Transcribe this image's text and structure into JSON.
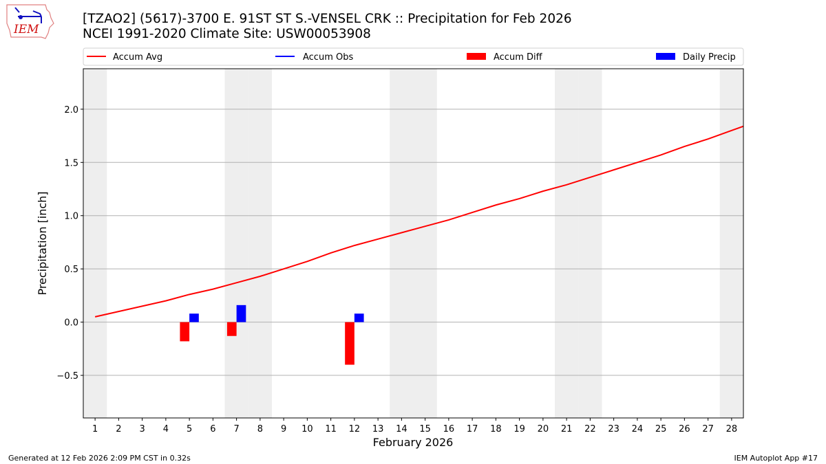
{
  "title_line1": "[TZAO2] (5617)-3700 E. 91ST ST S.-VENSEL CRK :: Precipitation for Feb 2026",
  "title_line2": "NCEI 1991-2020 Climate Site: USW00053908",
  "logo_text": "IEM",
  "footer_left": "Generated at 12 Feb 2026 2:09 PM CST in 0.32s",
  "footer_right": "IEM Autoplot App #17",
  "chart_data": {
    "type": "bar",
    "xlabel": "February 2026",
    "ylabel": "Precipitation [inch]",
    "xlim": [
      0.5,
      28.5
    ],
    "ylim": [
      -0.9,
      2.38
    ],
    "yticks": [
      -0.5,
      0.0,
      0.5,
      1.0,
      1.5,
      2.0
    ],
    "ytick_labels": [
      "−0.5",
      "0.0",
      "0.5",
      "1.0",
      "1.5",
      "2.0"
    ],
    "xticks": [
      1,
      2,
      3,
      4,
      5,
      6,
      7,
      8,
      9,
      10,
      11,
      12,
      13,
      14,
      15,
      16,
      17,
      18,
      19,
      20,
      21,
      22,
      23,
      24,
      25,
      26,
      27,
      28
    ],
    "grid": "horizontal",
    "legend_placement": "top",
    "weekend_shading_days": [
      1,
      7,
      8,
      14,
      15,
      21,
      22,
      28
    ],
    "legend": [
      {
        "name": "Accum Avg",
        "kind": "line",
        "color": "#ff0000"
      },
      {
        "name": "Accum Obs",
        "kind": "line",
        "color": "#0000ff"
      },
      {
        "name": "Accum Diff",
        "kind": "bar",
        "color": "#ff0000"
      },
      {
        "name": "Daily Precip",
        "kind": "bar",
        "color": "#0000ff"
      }
    ],
    "accum_avg": {
      "x": [
        1,
        2,
        3,
        4,
        5,
        6,
        7,
        8,
        9,
        10,
        11,
        12,
        13,
        14,
        15,
        16,
        17,
        18,
        19,
        20,
        21,
        22,
        23,
        24,
        25,
        26,
        27,
        28,
        29
      ],
      "y": [
        0.05,
        0.1,
        0.15,
        0.2,
        0.26,
        0.31,
        0.37,
        0.43,
        0.5,
        0.57,
        0.65,
        0.72,
        0.78,
        0.84,
        0.9,
        0.96,
        1.03,
        1.1,
        1.16,
        1.23,
        1.29,
        1.36,
        1.43,
        1.5,
        1.57,
        1.65,
        1.72,
        1.8,
        1.88
      ]
    },
    "accum_diff": {
      "x": [
        5,
        7,
        12
      ],
      "y": [
        -0.18,
        -0.13,
        -0.4
      ]
    },
    "daily_precip": {
      "x": [
        5,
        7,
        12
      ],
      "y": [
        0.08,
        0.16,
        0.08
      ]
    }
  }
}
